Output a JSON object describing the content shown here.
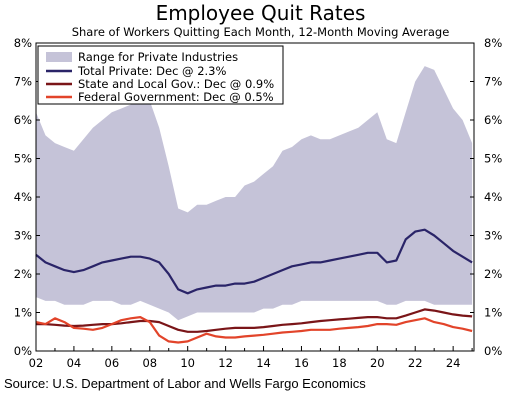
{
  "chart_data": {
    "type": "line",
    "title": "Employee Quit Rates",
    "subtitle": "Share of Workers Quitting Each Month, 12-Month Moving Average",
    "source": "Source: U.S. Department of Labor and Wells Fargo Economics",
    "x_ticks": [
      "02",
      "04",
      "06",
      "08",
      "10",
      "12",
      "14",
      "16",
      "18",
      "20",
      "22",
      "24"
    ],
    "x_tick_years": [
      2002,
      2004,
      2006,
      2008,
      2010,
      2012,
      2014,
      2016,
      2018,
      2020,
      2022,
      2024
    ],
    "xlim": [
      2002,
      2025.1
    ],
    "ylim": [
      0,
      8
    ],
    "y_ticks": [
      "0%",
      "1%",
      "2%",
      "3%",
      "4%",
      "5%",
      "6%",
      "7%",
      "8%"
    ],
    "y_tick_values": [
      0,
      1,
      2,
      3,
      4,
      5,
      6,
      7,
      8
    ],
    "legend_position": "top-left",
    "series": [
      {
        "name": "Range for Private Industries",
        "kind": "band",
        "color": "#c5c3d8",
        "x": [
          2002.0,
          2002.5,
          2003.0,
          2003.5,
          2004.0,
          2004.5,
          2005.0,
          2005.5,
          2006.0,
          2006.5,
          2007.0,
          2007.5,
          2008.0,
          2008.5,
          2009.0,
          2009.5,
          2010.0,
          2010.5,
          2011.0,
          2011.5,
          2012.0,
          2012.5,
          2013.0,
          2013.5,
          2014.0,
          2014.5,
          2015.0,
          2015.5,
          2016.0,
          2016.5,
          2017.0,
          2017.5,
          2018.0,
          2018.5,
          2019.0,
          2019.5,
          2020.0,
          2020.5,
          2021.0,
          2021.5,
          2022.0,
          2022.5,
          2023.0,
          2023.5,
          2024.0,
          2024.5,
          2025.0
        ],
        "upper": [
          6.2,
          5.6,
          5.4,
          5.3,
          5.2,
          5.5,
          5.8,
          6.0,
          6.2,
          6.3,
          6.4,
          6.5,
          6.5,
          5.8,
          4.8,
          3.7,
          3.6,
          3.8,
          3.8,
          3.9,
          4.0,
          4.0,
          4.3,
          4.4,
          4.6,
          4.8,
          5.2,
          5.3,
          5.5,
          5.6,
          5.5,
          5.5,
          5.6,
          5.7,
          5.8,
          6.0,
          6.2,
          5.5,
          5.4,
          6.2,
          7.0,
          7.4,
          7.3,
          6.8,
          6.3,
          6.0,
          5.4
        ],
        "lower": [
          1.4,
          1.3,
          1.3,
          1.2,
          1.2,
          1.2,
          1.3,
          1.3,
          1.3,
          1.2,
          1.2,
          1.3,
          1.2,
          1.1,
          1.0,
          0.8,
          0.9,
          1.0,
          1.0,
          1.0,
          1.0,
          1.0,
          1.0,
          1.0,
          1.1,
          1.1,
          1.2,
          1.2,
          1.3,
          1.3,
          1.3,
          1.3,
          1.3,
          1.3,
          1.3,
          1.3,
          1.3,
          1.2,
          1.2,
          1.3,
          1.3,
          1.3,
          1.2,
          1.2,
          1.2,
          1.2,
          1.2
        ]
      },
      {
        "name": "Total Private: Dec @ 2.3%",
        "kind": "line",
        "color": "#2a2468",
        "x": [
          2002.0,
          2002.5,
          2003.0,
          2003.5,
          2004.0,
          2004.5,
          2005.0,
          2005.5,
          2006.0,
          2006.5,
          2007.0,
          2007.5,
          2008.0,
          2008.5,
          2009.0,
          2009.5,
          2010.0,
          2010.5,
          2011.0,
          2011.5,
          2012.0,
          2012.5,
          2013.0,
          2013.5,
          2014.0,
          2014.5,
          2015.0,
          2015.5,
          2016.0,
          2016.5,
          2017.0,
          2017.5,
          2018.0,
          2018.5,
          2019.0,
          2019.5,
          2020.0,
          2020.5,
          2021.0,
          2021.5,
          2022.0,
          2022.5,
          2023.0,
          2023.5,
          2024.0,
          2024.5,
          2025.0
        ],
        "y": [
          2.5,
          2.3,
          2.2,
          2.1,
          2.05,
          2.1,
          2.2,
          2.3,
          2.35,
          2.4,
          2.45,
          2.45,
          2.4,
          2.3,
          2.0,
          1.6,
          1.5,
          1.6,
          1.65,
          1.7,
          1.7,
          1.75,
          1.75,
          1.8,
          1.9,
          2.0,
          2.1,
          2.2,
          2.25,
          2.3,
          2.3,
          2.35,
          2.4,
          2.45,
          2.5,
          2.55,
          2.55,
          2.3,
          2.35,
          2.9,
          3.1,
          3.15,
          3.0,
          2.8,
          2.6,
          2.45,
          2.3
        ]
      },
      {
        "name": "State and Local Gov.: Dec @ 0.9%",
        "kind": "line",
        "color": "#7a1518",
        "x": [
          2002.0,
          2002.5,
          2003.0,
          2003.5,
          2004.0,
          2004.5,
          2005.0,
          2005.5,
          2006.0,
          2006.5,
          2007.0,
          2007.5,
          2008.0,
          2008.5,
          2009.0,
          2009.5,
          2010.0,
          2010.5,
          2011.0,
          2011.5,
          2012.0,
          2012.5,
          2013.0,
          2013.5,
          2014.0,
          2014.5,
          2015.0,
          2015.5,
          2016.0,
          2016.5,
          2017.0,
          2017.5,
          2018.0,
          2018.5,
          2019.0,
          2019.5,
          2020.0,
          2020.5,
          2021.0,
          2021.5,
          2022.0,
          2022.5,
          2023.0,
          2023.5,
          2024.0,
          2024.5,
          2025.0
        ],
        "y": [
          0.7,
          0.7,
          0.68,
          0.66,
          0.65,
          0.66,
          0.68,
          0.7,
          0.7,
          0.72,
          0.75,
          0.78,
          0.78,
          0.75,
          0.65,
          0.55,
          0.5,
          0.5,
          0.52,
          0.55,
          0.58,
          0.6,
          0.6,
          0.6,
          0.62,
          0.65,
          0.68,
          0.7,
          0.72,
          0.75,
          0.78,
          0.8,
          0.82,
          0.84,
          0.86,
          0.88,
          0.88,
          0.85,
          0.85,
          0.92,
          1.0,
          1.08,
          1.05,
          1.0,
          0.95,
          0.92,
          0.9
        ]
      },
      {
        "name": "Federal Government: Dec @ 0.5%",
        "kind": "line",
        "color": "#e2442a",
        "x": [
          2002.0,
          2002.5,
          2003.0,
          2003.5,
          2004.0,
          2004.5,
          2005.0,
          2005.5,
          2006.0,
          2006.5,
          2007.0,
          2007.5,
          2008.0,
          2008.5,
          2009.0,
          2009.5,
          2010.0,
          2010.5,
          2011.0,
          2011.5,
          2012.0,
          2012.5,
          2013.0,
          2013.5,
          2014.0,
          2014.5,
          2015.0,
          2015.5,
          2016.0,
          2016.5,
          2017.0,
          2017.5,
          2018.0,
          2018.5,
          2019.0,
          2019.5,
          2020.0,
          2020.5,
          2021.0,
          2021.5,
          2022.0,
          2022.5,
          2023.0,
          2023.5,
          2024.0,
          2024.5,
          2025.0
        ],
        "y": [
          0.75,
          0.7,
          0.85,
          0.75,
          0.6,
          0.58,
          0.55,
          0.6,
          0.7,
          0.8,
          0.85,
          0.88,
          0.75,
          0.4,
          0.25,
          0.22,
          0.25,
          0.35,
          0.45,
          0.38,
          0.35,
          0.35,
          0.38,
          0.4,
          0.42,
          0.45,
          0.48,
          0.5,
          0.52,
          0.55,
          0.55,
          0.55,
          0.58,
          0.6,
          0.62,
          0.65,
          0.7,
          0.7,
          0.68,
          0.75,
          0.8,
          0.85,
          0.75,
          0.7,
          0.62,
          0.58,
          0.52
        ]
      }
    ]
  }
}
